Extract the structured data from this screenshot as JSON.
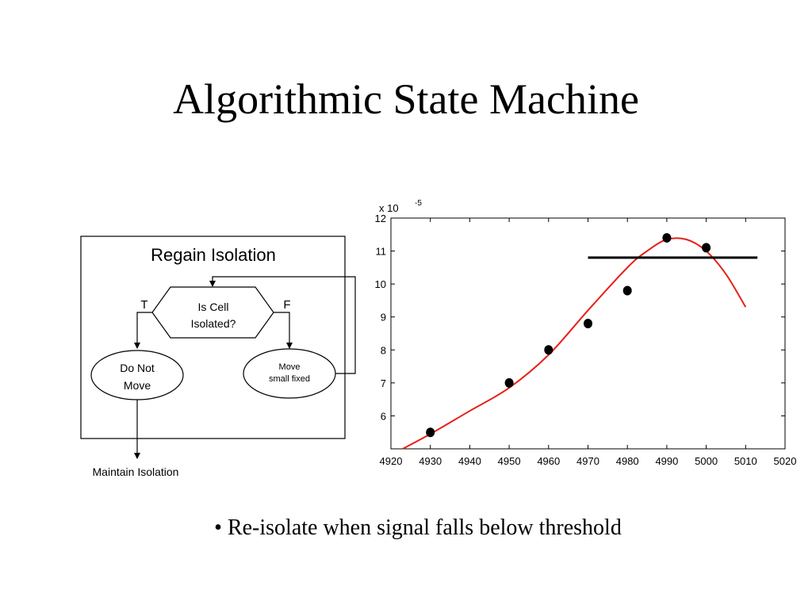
{
  "slide": {
    "title": "Algorithmic State Machine",
    "bullet": "• Re-isolate when signal falls below threshold"
  },
  "flowchart": {
    "box_title": "Regain Isolation",
    "decision_line1": "Is Cell",
    "decision_line2": "Isolated?",
    "true_label": "T",
    "false_label": "F",
    "left_state_line1": "Do Not",
    "left_state_line2": "Move",
    "right_state_line1": "Move",
    "right_state_line2": "small fixed",
    "exit_label": "Maintain Isolation"
  },
  "chart_data": {
    "type": "scatter",
    "x_ticks": [
      "4920",
      "4930",
      "4940",
      "4950",
      "4960",
      "4970",
      "4980",
      "4990",
      "5000",
      "5010",
      "5020"
    ],
    "y_ticks": [
      "6",
      "7",
      "8",
      "9",
      "10",
      "11",
      "12"
    ],
    "xlim": [
      4920,
      5020
    ],
    "ylim": [
      5,
      12
    ],
    "y_multiplier_base": "x 10",
    "y_multiplier_exponent": "-5",
    "points": [
      {
        "x": 4930,
        "y": 5.5
      },
      {
        "x": 4950,
        "y": 7.0
      },
      {
        "x": 4960,
        "y": 8.0
      },
      {
        "x": 4970,
        "y": 8.8
      },
      {
        "x": 4980,
        "y": 9.8
      },
      {
        "x": 4990,
        "y": 11.4
      },
      {
        "x": 5000,
        "y": 11.1
      }
    ],
    "fit_curve": [
      {
        "x": 4923,
        "y": 5.0
      },
      {
        "x": 4930,
        "y": 5.45
      },
      {
        "x": 4940,
        "y": 6.15
      },
      {
        "x": 4950,
        "y": 6.85
      },
      {
        "x": 4960,
        "y": 7.85
      },
      {
        "x": 4970,
        "y": 9.2
      },
      {
        "x": 4980,
        "y": 10.5
      },
      {
        "x": 4985,
        "y": 11.0
      },
      {
        "x": 4990,
        "y": 11.35
      },
      {
        "x": 4995,
        "y": 11.35
      },
      {
        "x": 5000,
        "y": 11.0
      },
      {
        "x": 5005,
        "y": 10.3
      },
      {
        "x": 5010,
        "y": 9.3
      }
    ],
    "threshold": {
      "y": 10.8,
      "x_start": 4970,
      "x_end": 5013
    },
    "colors": {
      "points": "#000000",
      "curve": "#e8201a",
      "threshold": "#000000"
    },
    "grid": false
  }
}
